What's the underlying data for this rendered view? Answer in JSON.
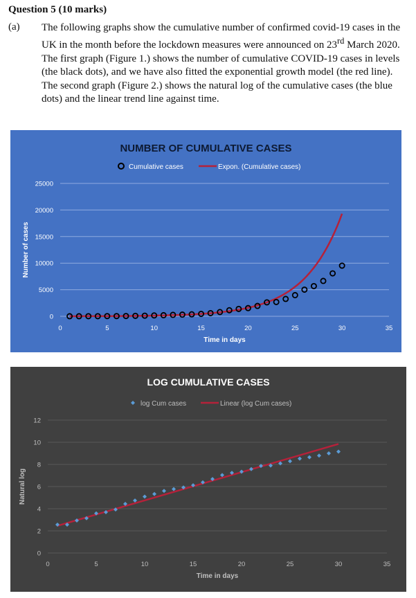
{
  "question": {
    "title": "Question 5 (10 marks)",
    "part": "(a)",
    "text_before_sup": "The following graphs show the cumulative number of confirmed covid-19 cases in the UK in the month before the lockdown measures were announced on 23",
    "sup": "rd",
    "text_after_sup": " March 2020. The first graph (Figure 1.) shows the number of cumulative COVID-19 cases in levels (the black dots), and we have also fitted the exponential growth model (the red line). The second graph (Figure 2.) shows the natural log of the cumulative cases (the blue dots) and the linear trend line against time."
  },
  "colors": {
    "chart1_bg": "#4472c4",
    "chart2_bg": "#404040",
    "trend_red": "#b5213a",
    "marker_blue": "#5b9bd5",
    "gridline": "#8fabe0",
    "gridline_dark": "#595959"
  },
  "chart_data": [
    {
      "type": "scatter",
      "title": "NUMBER OF CUMULATIVE CASES",
      "xlabel": "Time in days",
      "ylabel": "Number of cases",
      "xlim": [
        0,
        35
      ],
      "ylim": [
        0,
        25000
      ],
      "xticks": [
        0,
        5,
        10,
        15,
        20,
        25,
        30,
        35
      ],
      "yticks": [
        0,
        5000,
        10000,
        15000,
        20000,
        25000
      ],
      "grid": true,
      "legend": "top",
      "series": [
        {
          "name": "Cumulative cases",
          "marker": "open-circle",
          "x": [
            1,
            2,
            3,
            4,
            5,
            6,
            7,
            8,
            9,
            10,
            11,
            12,
            13,
            14,
            15,
            16,
            17,
            18,
            19,
            20,
            21,
            22,
            23,
            24,
            25,
            26,
            27,
            28,
            29,
            30
          ],
          "y": [
            13,
            13,
            19,
            23,
            36,
            40,
            51,
            85,
            115,
            163,
            206,
            273,
            321,
            373,
            456,
            590,
            798,
            1140,
            1391,
            1543,
            1950,
            2626,
            2689,
            3269,
            3983,
            5018,
            5683,
            6650,
            8077,
            9529
          ]
        },
        {
          "name": "Expon. (Cumulative cases)",
          "kind": "exponential-trend",
          "a": 11,
          "b": 0.249
        }
      ]
    },
    {
      "type": "scatter",
      "title": "LOG CUMULATIVE CASES",
      "xlabel": "Time in days",
      "ylabel": "Natural log",
      "xlim": [
        0,
        35
      ],
      "ylim": [
        0,
        12
      ],
      "xticks": [
        0,
        5,
        10,
        15,
        20,
        25,
        30,
        35
      ],
      "yticks": [
        0,
        2,
        4,
        6,
        8,
        10,
        12
      ],
      "grid": true,
      "legend": "top",
      "series": [
        {
          "name": "log Cum cases",
          "marker": "diamond",
          "x": [
            1,
            2,
            3,
            4,
            5,
            6,
            7,
            8,
            9,
            10,
            11,
            12,
            13,
            14,
            15,
            16,
            17,
            18,
            19,
            20,
            21,
            22,
            23,
            24,
            25,
            26,
            27,
            28,
            29,
            30
          ],
          "y": [
            2.56,
            2.56,
            2.94,
            3.14,
            3.58,
            3.69,
            3.93,
            4.44,
            4.74,
            5.09,
            5.33,
            5.61,
            5.77,
            5.92,
            6.12,
            6.38,
            6.68,
            7.04,
            7.24,
            7.34,
            7.58,
            7.87,
            7.9,
            8.09,
            8.29,
            8.52,
            8.65,
            8.8,
            9.0,
            9.16
          ]
        },
        {
          "name": "Linear (log Cum cases)",
          "kind": "linear-trend",
          "intercept": 2.2,
          "slope": 0.255
        }
      ]
    }
  ]
}
